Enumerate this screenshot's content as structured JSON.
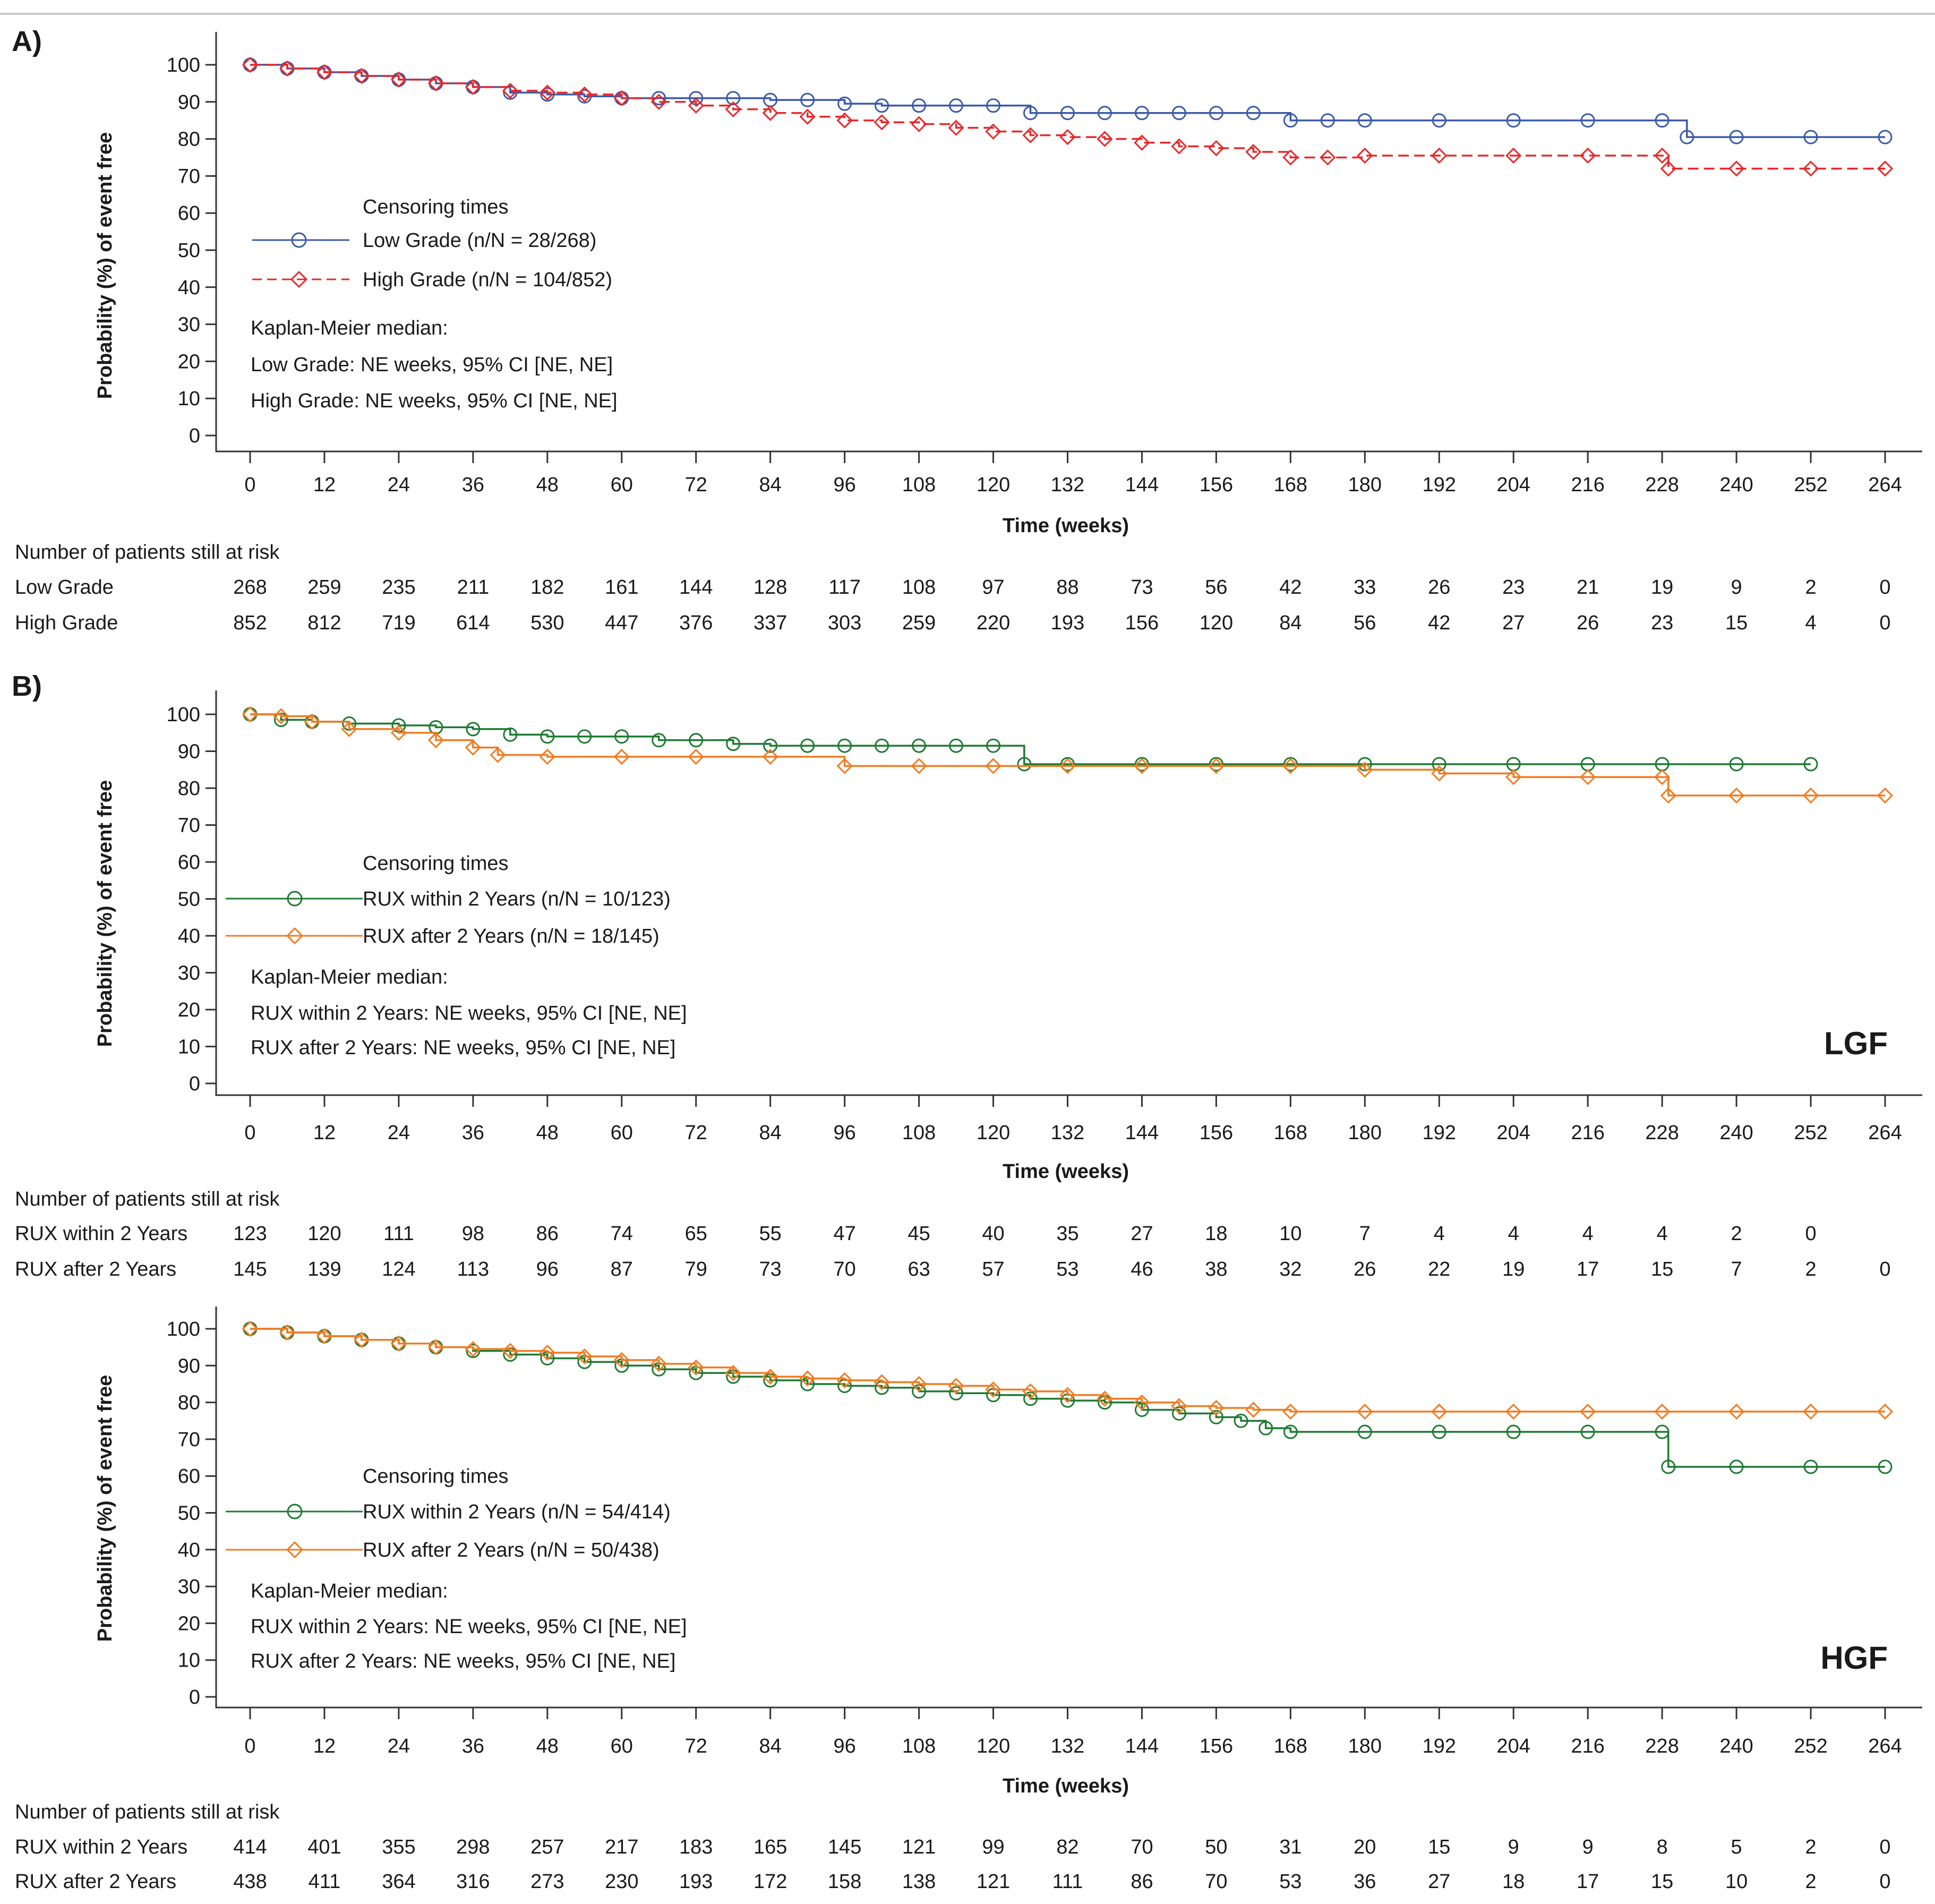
{
  "chart_data": [
    {
      "type": "line",
      "panel_label": "A)",
      "tag": "",
      "ylabel": "Probability (%) of event free",
      "xlabel": "Time (weeks)",
      "xlim": [
        0,
        264
      ],
      "ylim": [
        0,
        100
      ],
      "xticks": [
        "0",
        "12",
        "24",
        "36",
        "48",
        "60",
        "72",
        "84",
        "96",
        "108",
        "120",
        "132",
        "144",
        "156",
        "168",
        "180",
        "192",
        "204",
        "216",
        "228",
        "240",
        "252",
        "264"
      ],
      "yticks": [
        "0",
        "10",
        "20",
        "30",
        "40",
        "50",
        "60",
        "70",
        "80",
        "90",
        "100"
      ],
      "legend": {
        "title": "Censoring times",
        "entries": [
          "Low Grade (n/N = 28/268)",
          "High Grade (n/N = 104/852)"
        ],
        "km_title": "Kaplan-Meier median:",
        "km_lines": [
          "Low Grade: NE weeks, 95% CI [NE, NE]",
          "High Grade: NE weeks, 95% CI [NE, NE]"
        ]
      },
      "risk_table": {
        "title": "Number of patients still at risk",
        "rows": [
          {
            "name": "Low Grade",
            "values": [
              "268",
              "259",
              "235",
              "211",
              "182",
              "161",
              "144",
              "128",
              "117",
              "108",
              "97",
              "88",
              "73",
              "56",
              "42",
              "33",
              "26",
              "23",
              "21",
              "19",
              "9",
              "2",
              "0"
            ]
          },
          {
            "name": "High Grade",
            "values": [
              "852",
              "812",
              "719",
              "614",
              "530",
              "447",
              "376",
              "337",
              "303",
              "259",
              "220",
              "193",
              "156",
              "120",
              "84",
              "56",
              "42",
              "27",
              "26",
              "23",
              "15",
              "4",
              "0"
            ]
          }
        ]
      },
      "series": [
        {
          "name": "Low Grade",
          "color": "#3a5aa8",
          "marker": "circle",
          "dashed": false,
          "x": [
            0,
            6,
            12,
            18,
            24,
            30,
            36,
            42,
            48,
            54,
            60,
            66,
            72,
            78,
            84,
            90,
            96,
            102,
            108,
            114,
            120,
            126,
            132,
            138,
            144,
            150,
            156,
            162,
            168,
            174,
            180,
            192,
            204,
            216,
            228,
            232,
            240,
            252,
            264
          ],
          "y": [
            100,
            99,
            98,
            97,
            96,
            95,
            94,
            92.5,
            92,
            91.5,
            91,
            91,
            91,
            91,
            90.5,
            90.5,
            89.5,
            89,
            89,
            89,
            89,
            87,
            87,
            87,
            87,
            87,
            87,
            87,
            85,
            85,
            85,
            85,
            85,
            85,
            85,
            80.5,
            80.5,
            80.5,
            80.5
          ]
        },
        {
          "name": "High Grade",
          "color": "#e8282a",
          "marker": "diamond",
          "dashed": true,
          "x": [
            0,
            6,
            12,
            18,
            24,
            30,
            36,
            42,
            48,
            54,
            60,
            66,
            72,
            78,
            84,
            90,
            96,
            102,
            108,
            114,
            120,
            126,
            132,
            138,
            144,
            150,
            156,
            162,
            168,
            174,
            180,
            192,
            204,
            216,
            228,
            229,
            240,
            252,
            264
          ],
          "y": [
            100,
            99,
            98,
            97,
            96,
            95,
            94,
            93,
            92.5,
            92,
            91,
            90,
            89,
            88,
            87,
            86,
            85,
            84.5,
            84,
            83,
            82,
            81,
            80.5,
            80,
            79,
            78,
            77.5,
            76.5,
            75,
            75,
            75.5,
            75.5,
            75.5,
            75.5,
            75.5,
            72,
            72,
            72,
            72
          ]
        }
      ]
    },
    {
      "type": "line",
      "panel_label": "B)",
      "tag": "LGF",
      "ylabel": "Probability (%) of event free",
      "xlabel": "Time (weeks)",
      "xlim": [
        0,
        264
      ],
      "ylim": [
        0,
        100
      ],
      "xticks": [
        "0",
        "12",
        "24",
        "36",
        "48",
        "60",
        "72",
        "84",
        "96",
        "108",
        "120",
        "132",
        "144",
        "156",
        "168",
        "180",
        "192",
        "204",
        "216",
        "228",
        "240",
        "252",
        "264"
      ],
      "yticks": [
        "0",
        "10",
        "20",
        "30",
        "40",
        "50",
        "60",
        "70",
        "80",
        "90",
        "100"
      ],
      "legend": {
        "title": "Censoring times",
        "entries": [
          "RUX within 2 Years (n/N = 10/123)",
          "RUX after 2 Years (n/N = 18/145)"
        ],
        "km_title": "Kaplan-Meier median:",
        "km_lines": [
          "RUX within 2 Years: NE weeks, 95% CI [NE, NE]",
          "RUX after 2 Years: NE weeks, 95% CI [NE, NE]"
        ]
      },
      "risk_table": {
        "title": "Number of patients still at risk",
        "rows": [
          {
            "name": "RUX within 2 Years",
            "values": [
              "123",
              "120",
              "111",
              "98",
              "86",
              "74",
              "65",
              "55",
              "47",
              "45",
              "40",
              "35",
              "27",
              "18",
              "10",
              "7",
              "4",
              "4",
              "4",
              "4",
              "2",
              "0",
              ""
            ]
          },
          {
            "name": "RUX after 2 Years",
            "values": [
              "145",
              "139",
              "124",
              "113",
              "96",
              "87",
              "79",
              "73",
              "70",
              "63",
              "57",
              "53",
              "46",
              "38",
              "32",
              "26",
              "22",
              "19",
              "17",
              "15",
              "7",
              "2",
              "0"
            ]
          }
        ]
      },
      "series": [
        {
          "name": "RUX within 2 Years",
          "color": "#1e7a32",
          "marker": "circle",
          "dashed": false,
          "x": [
            0,
            5,
            10,
            16,
            24,
            30,
            36,
            42,
            48,
            54,
            60,
            66,
            72,
            78,
            84,
            90,
            96,
            102,
            108,
            114,
            120,
            125,
            132,
            144,
            156,
            168,
            180,
            192,
            204,
            216,
            228,
            240,
            252
          ],
          "y": [
            100,
            98.5,
            98,
            97.5,
            97,
            96.5,
            96,
            94.5,
            94,
            94,
            94,
            93,
            93,
            92,
            91.5,
            91.5,
            91.5,
            91.5,
            91.5,
            91.5,
            91.5,
            86.5,
            86.5,
            86.5,
            86.5,
            86.5,
            86.5,
            86.5,
            86.5,
            86.5,
            86.5,
            86.5,
            86.5
          ]
        },
        {
          "name": "RUX after 2 Years",
          "color": "#f07c22",
          "marker": "diamond",
          "dashed": false,
          "x": [
            0,
            5,
            10,
            16,
            24,
            30,
            36,
            40,
            48,
            60,
            72,
            84,
            96,
            108,
            120,
            132,
            144,
            156,
            168,
            180,
            192,
            204,
            216,
            228,
            229,
            240,
            252,
            264
          ],
          "y": [
            100,
            99.5,
            98,
            96,
            95,
            93,
            91,
            89,
            88.5,
            88.5,
            88.5,
            88.5,
            86,
            86,
            86,
            86,
            86,
            86,
            86,
            85,
            84,
            83,
            83,
            83,
            78,
            78,
            78,
            78
          ]
        }
      ]
    },
    {
      "type": "line",
      "panel_label": "",
      "tag": "HGF",
      "ylabel": "Probability (%) of event free",
      "xlabel": "Time (weeks)",
      "xlim": [
        0,
        264
      ],
      "ylim": [
        0,
        100
      ],
      "xticks": [
        "0",
        "12",
        "24",
        "36",
        "48",
        "60",
        "72",
        "84",
        "96",
        "108",
        "120",
        "132",
        "144",
        "156",
        "168",
        "180",
        "192",
        "204",
        "216",
        "228",
        "240",
        "252",
        "264"
      ],
      "yticks": [
        "0",
        "10",
        "20",
        "30",
        "40",
        "50",
        "60",
        "70",
        "80",
        "90",
        "100"
      ],
      "legend": {
        "title": "Censoring times",
        "entries": [
          "RUX within 2 Years (n/N = 54/414)",
          "RUX after 2 Years (n/N = 50/438)"
        ],
        "km_title": "Kaplan-Meier median:",
        "km_lines": [
          "RUX within 2 Years: NE weeks, 95% CI [NE, NE]",
          "RUX after 2 Years: NE weeks, 95% CI [NE, NE]"
        ]
      },
      "risk_table": {
        "title": "Number of patients still at risk",
        "rows": [
          {
            "name": "RUX within 2 Years",
            "values": [
              "414",
              "401",
              "355",
              "298",
              "257",
              "217",
              "183",
              "165",
              "145",
              "121",
              "99",
              "82",
              "70",
              "50",
              "31",
              "20",
              "15",
              "9",
              "9",
              "8",
              "5",
              "2",
              "0"
            ]
          },
          {
            "name": "RUX after 2 Years",
            "values": [
              "438",
              "411",
              "364",
              "316",
              "273",
              "230",
              "193",
              "172",
              "158",
              "138",
              "121",
              "111",
              "86",
              "70",
              "53",
              "36",
              "27",
              "18",
              "17",
              "15",
              "10",
              "2",
              "0"
            ]
          }
        ]
      },
      "series": [
        {
          "name": "RUX within 2 Years",
          "color": "#1e7a32",
          "marker": "circle",
          "dashed": false,
          "x": [
            0,
            6,
            12,
            18,
            24,
            30,
            36,
            42,
            48,
            54,
            60,
            66,
            72,
            78,
            84,
            90,
            96,
            102,
            108,
            114,
            120,
            126,
            132,
            138,
            144,
            150,
            156,
            160,
            164,
            168,
            180,
            192,
            204,
            216,
            228,
            229,
            240,
            252,
            264
          ],
          "y": [
            100,
            99,
            98,
            97,
            96,
            95,
            94,
            93,
            92,
            91,
            90,
            89,
            88,
            87,
            86,
            85,
            84.5,
            84,
            83,
            82.5,
            82,
            81,
            80.5,
            80,
            78,
            77,
            76,
            75,
            73,
            72,
            72,
            72,
            72,
            72,
            72,
            62.5,
            62.5,
            62.5,
            62.5
          ]
        },
        {
          "name": "RUX after 2 Years",
          "color": "#f07c22",
          "marker": "diamond",
          "dashed": false,
          "x": [
            0,
            6,
            12,
            18,
            24,
            30,
            36,
            42,
            48,
            54,
            60,
            66,
            72,
            78,
            84,
            90,
            96,
            102,
            108,
            114,
            120,
            126,
            132,
            138,
            144,
            150,
            156,
            162,
            168,
            180,
            192,
            204,
            216,
            228,
            240,
            252,
            264
          ],
          "y": [
            100,
            99,
            98,
            97,
            96,
            95,
            94.5,
            94,
            93.5,
            92.5,
            91.5,
            90.5,
            89.5,
            88,
            87,
            86.5,
            86,
            85.5,
            85,
            84.5,
            83.5,
            83,
            82,
            81,
            80,
            79,
            78.5,
            78,
            77.5,
            77.5,
            77.5,
            77.5,
            77.5,
            77.5,
            77.5,
            77.5,
            77.5
          ]
        }
      ]
    }
  ]
}
